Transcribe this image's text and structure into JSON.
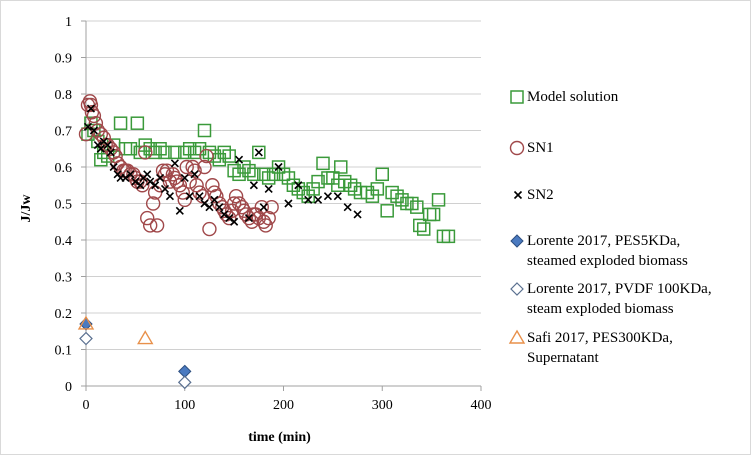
{
  "chart_data": {
    "type": "scatter",
    "xlabel": "time (min)",
    "ylabel": "J/Jw",
    "xlim": [
      0,
      400
    ],
    "ylim": [
      0,
      1
    ],
    "x_ticks": [
      0,
      100,
      200,
      300,
      400
    ],
    "y_ticks": [
      0,
      0.1,
      0.2,
      0.3,
      0.4,
      0.5,
      0.6,
      0.7,
      0.8,
      0.9,
      1
    ],
    "grid": "horizontal",
    "legend_position": "right",
    "series": [
      {
        "name": "Model solution",
        "marker": "square-open",
        "color": "#3a9a3a",
        "points": [
          [
            2,
            0.69
          ],
          [
            5,
            0.72
          ],
          [
            8,
            0.7
          ],
          [
            12,
            0.67
          ],
          [
            15,
            0.62
          ],
          [
            18,
            0.64
          ],
          [
            22,
            0.63
          ],
          [
            28,
            0.66
          ],
          [
            35,
            0.72
          ],
          [
            40,
            0.65
          ],
          [
            45,
            0.65
          ],
          [
            52,
            0.72
          ],
          [
            55,
            0.64
          ],
          [
            60,
            0.66
          ],
          [
            65,
            0.65
          ],
          [
            70,
            0.64
          ],
          [
            75,
            0.65
          ],
          [
            80,
            0.64
          ],
          [
            90,
            0.64
          ],
          [
            100,
            0.64
          ],
          [
            105,
            0.65
          ],
          [
            110,
            0.64
          ],
          [
            115,
            0.65
          ],
          [
            120,
            0.7
          ],
          [
            125,
            0.64
          ],
          [
            130,
            0.63
          ],
          [
            135,
            0.62
          ],
          [
            140,
            0.64
          ],
          [
            145,
            0.63
          ],
          [
            150,
            0.59
          ],
          [
            155,
            0.58
          ],
          [
            160,
            0.6
          ],
          [
            165,
            0.59
          ],
          [
            170,
            0.58
          ],
          [
            175,
            0.64
          ],
          [
            180,
            0.58
          ],
          [
            185,
            0.57
          ],
          [
            190,
            0.58
          ],
          [
            195,
            0.6
          ],
          [
            200,
            0.58
          ],
          [
            205,
            0.57
          ],
          [
            210,
            0.55
          ],
          [
            215,
            0.54
          ],
          [
            220,
            0.53
          ],
          [
            225,
            0.52
          ],
          [
            230,
            0.54
          ],
          [
            235,
            0.56
          ],
          [
            240,
            0.61
          ],
          [
            245,
            0.57
          ],
          [
            250,
            0.57
          ],
          [
            255,
            0.55
          ],
          [
            258,
            0.6
          ],
          [
            262,
            0.56
          ],
          [
            268,
            0.55
          ],
          [
            272,
            0.54
          ],
          [
            278,
            0.53
          ],
          [
            285,
            0.53
          ],
          [
            290,
            0.52
          ],
          [
            295,
            0.54
          ],
          [
            300,
            0.58
          ],
          [
            305,
            0.48
          ],
          [
            310,
            0.53
          ],
          [
            315,
            0.52
          ],
          [
            320,
            0.51
          ],
          [
            325,
            0.5
          ],
          [
            330,
            0.5
          ],
          [
            335,
            0.49
          ],
          [
            338,
            0.44
          ],
          [
            342,
            0.43
          ],
          [
            348,
            0.47
          ],
          [
            352,
            0.47
          ],
          [
            357,
            0.51
          ],
          [
            362,
            0.41
          ],
          [
            367,
            0.41
          ]
        ]
      },
      {
        "name": "SN1",
        "marker": "circle-open",
        "color": "#a0484a",
        "points": [
          [
            0,
            0.69
          ],
          [
            2,
            0.77
          ],
          [
            4,
            0.78
          ],
          [
            5,
            0.77
          ],
          [
            6,
            0.75
          ],
          [
            8,
            0.74
          ],
          [
            10,
            0.72
          ],
          [
            12,
            0.7
          ],
          [
            15,
            0.69
          ],
          [
            18,
            0.68
          ],
          [
            20,
            0.66
          ],
          [
            22,
            0.66
          ],
          [
            25,
            0.65
          ],
          [
            28,
            0.64
          ],
          [
            30,
            0.63
          ],
          [
            32,
            0.61
          ],
          [
            35,
            0.6
          ],
          [
            38,
            0.59
          ],
          [
            40,
            0.59
          ],
          [
            42,
            0.59
          ],
          [
            45,
            0.58
          ],
          [
            48,
            0.58
          ],
          [
            50,
            0.57
          ],
          [
            52,
            0.56
          ],
          [
            55,
            0.56
          ],
          [
            57,
            0.55
          ],
          [
            60,
            0.64
          ],
          [
            62,
            0.46
          ],
          [
            65,
            0.44
          ],
          [
            68,
            0.5
          ],
          [
            70,
            0.53
          ],
          [
            72,
            0.44
          ],
          [
            75,
            0.55
          ],
          [
            78,
            0.59
          ],
          [
            80,
            0.58
          ],
          [
            82,
            0.59
          ],
          [
            85,
            0.56
          ],
          [
            88,
            0.58
          ],
          [
            90,
            0.57
          ],
          [
            92,
            0.56
          ],
          [
            95,
            0.55
          ],
          [
            98,
            0.53
          ],
          [
            100,
            0.51
          ],
          [
            102,
            0.6
          ],
          [
            105,
            0.56
          ],
          [
            108,
            0.6
          ],
          [
            110,
            0.59
          ],
          [
            112,
            0.55
          ],
          [
            115,
            0.53
          ],
          [
            118,
            0.52
          ],
          [
            120,
            0.6
          ],
          [
            122,
            0.63
          ],
          [
            125,
            0.43
          ],
          [
            128,
            0.55
          ],
          [
            130,
            0.53
          ],
          [
            132,
            0.52
          ],
          [
            135,
            0.5
          ],
          [
            138,
            0.49
          ],
          [
            140,
            0.48
          ],
          [
            142,
            0.47
          ],
          [
            145,
            0.46
          ],
          [
            148,
            0.48
          ],
          [
            150,
            0.5
          ],
          [
            152,
            0.52
          ],
          [
            155,
            0.5
          ],
          [
            158,
            0.49
          ],
          [
            160,
            0.48
          ],
          [
            162,
            0.47
          ],
          [
            165,
            0.46
          ],
          [
            168,
            0.45
          ],
          [
            170,
            0.47
          ],
          [
            172,
            0.47
          ],
          [
            175,
            0.46
          ],
          [
            178,
            0.49
          ],
          [
            180,
            0.45
          ],
          [
            182,
            0.44
          ],
          [
            185,
            0.46
          ],
          [
            188,
            0.49
          ]
        ]
      },
      {
        "name": "SN2",
        "marker": "x",
        "color": "#000000",
        "points": [
          [
            2,
            0.71
          ],
          [
            5,
            0.76
          ],
          [
            8,
            0.7
          ],
          [
            12,
            0.66
          ],
          [
            15,
            0.65
          ],
          [
            18,
            0.67
          ],
          [
            22,
            0.66
          ],
          [
            25,
            0.64
          ],
          [
            28,
            0.6
          ],
          [
            32,
            0.58
          ],
          [
            35,
            0.57
          ],
          [
            40,
            0.57
          ],
          [
            45,
            0.58
          ],
          [
            50,
            0.56
          ],
          [
            55,
            0.55
          ],
          [
            58,
            0.57
          ],
          [
            62,
            0.58
          ],
          [
            65,
            0.56
          ],
          [
            70,
            0.55
          ],
          [
            75,
            0.57
          ],
          [
            80,
            0.54
          ],
          [
            85,
            0.52
          ],
          [
            90,
            0.61
          ],
          [
            95,
            0.48
          ],
          [
            100,
            0.57
          ],
          [
            105,
            0.52
          ],
          [
            110,
            0.58
          ],
          [
            115,
            0.52
          ],
          [
            120,
            0.5
          ],
          [
            125,
            0.49
          ],
          [
            130,
            0.51
          ],
          [
            135,
            0.49
          ],
          [
            140,
            0.47
          ],
          [
            145,
            0.46
          ],
          [
            150,
            0.45
          ],
          [
            155,
            0.62
          ],
          [
            165,
            0.46
          ],
          [
            170,
            0.55
          ],
          [
            175,
            0.64
          ],
          [
            180,
            0.49
          ],
          [
            185,
            0.54
          ],
          [
            195,
            0.6
          ],
          [
            205,
            0.5
          ],
          [
            215,
            0.55
          ],
          [
            225,
            0.51
          ],
          [
            235,
            0.51
          ],
          [
            245,
            0.52
          ],
          [
            255,
            0.52
          ],
          [
            265,
            0.49
          ],
          [
            275,
            0.47
          ]
        ]
      },
      {
        "name": "Lorente 2017, PES5KDa, steamed exploded biomass",
        "marker": "diamond-filled",
        "color": "#4a7ac0",
        "points": [
          [
            0,
            0.17
          ],
          [
            100,
            0.04
          ]
        ]
      },
      {
        "name": "Lorente 2017, PVDF 100KDa, steam exploded biomass",
        "marker": "diamond-open",
        "color": "#5a7090",
        "points": [
          [
            0,
            0.13
          ],
          [
            100,
            0.01
          ]
        ]
      },
      {
        "name": "Safi 2017, PES300KDa, Supernatant",
        "marker": "triangle-open",
        "color": "#e8904a",
        "points": [
          [
            0,
            0.17
          ],
          [
            60,
            0.13
          ]
        ]
      }
    ]
  },
  "legend": {
    "entries": [
      {
        "lines": [
          "Model solution"
        ]
      },
      {
        "lines": [
          "SN1"
        ]
      },
      {
        "lines": [
          "SN2"
        ]
      },
      {
        "lines": [
          "Lorente 2017, PES5KDa,",
          "steamed exploded biomass"
        ]
      },
      {
        "lines": [
          "Lorente 2017, PVDF 100KDa,",
          "steam exploded biomass"
        ]
      },
      {
        "lines": [
          "Safi 2017, PES300KDa,",
          "Supernatant"
        ]
      }
    ]
  }
}
